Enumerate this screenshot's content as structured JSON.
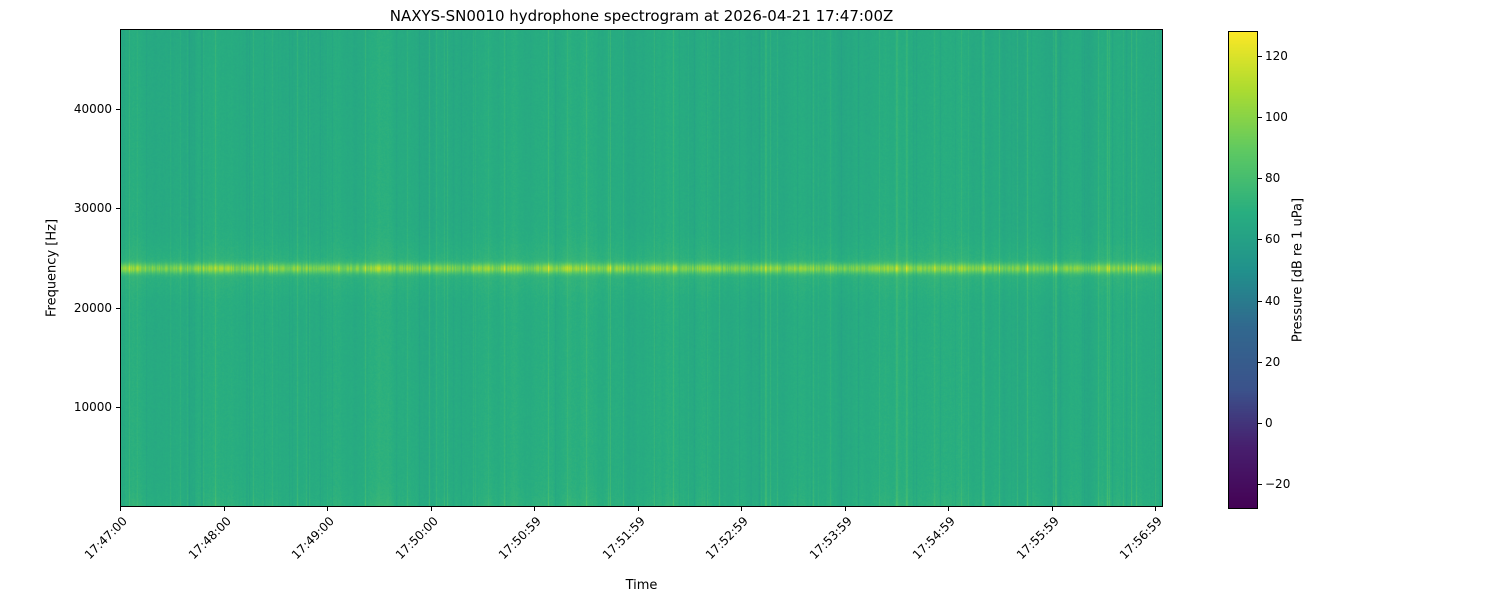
{
  "chart_data": {
    "type": "heatmap",
    "title": "NAXYS-SN0010 hydrophone spectrogram at 2026-04-21 17:47:00Z",
    "xlabel": "Time",
    "ylabel": "Frequency [Hz]",
    "x_tick_labels": [
      "17:47:00",
      "17:48:00",
      "17:49:00",
      "17:50:00",
      "17:50:59",
      "17:51:59",
      "17:52:59",
      "17:53:59",
      "17:54:59",
      "17:55:59",
      "17:56:59"
    ],
    "y_ticks": [
      10000,
      20000,
      30000,
      40000
    ],
    "y_range": [
      0,
      48000
    ],
    "colormap": "viridis",
    "grid": false,
    "legend": false,
    "colorbar": {
      "label": "Pressure [dB re 1 uPa]",
      "ticks": [
        -20,
        0,
        20,
        40,
        60,
        80,
        100,
        120
      ],
      "vmin": -28,
      "vmax": 128
    },
    "content_summary": {
      "description": "Broadband ambient noise around 60-78 dB re 1 uPa with dense vertical striping over the full band, plus a persistent bright tonal band near 24 kHz reaching ~95-105 dB for the whole 10-minute record.",
      "background_level_db": 68,
      "stripe_variation_db": 8,
      "tonal_band_hz": 24000,
      "tonal_band_level_db": 100,
      "tonal_band_width_hz": 700
    },
    "viridis_stops": [
      [
        0,
        "#440154"
      ],
      [
        0.13,
        "#471f6e"
      ],
      [
        0.25,
        "#3b528b"
      ],
      [
        0.38,
        "#31688e"
      ],
      [
        0.5,
        "#21918c"
      ],
      [
        0.62,
        "#28ae80"
      ],
      [
        0.75,
        "#5ec962"
      ],
      [
        0.88,
        "#addc30"
      ],
      [
        1,
        "#fde725"
      ]
    ]
  }
}
